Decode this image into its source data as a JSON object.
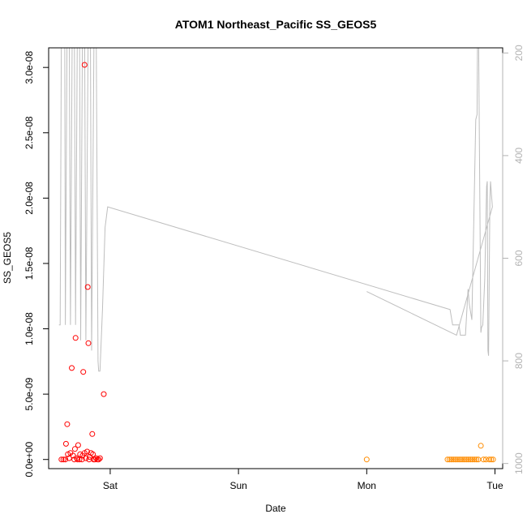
{
  "chart_data": {
    "type": "scatter",
    "title": "ATOM1 Northeast_Pacific SS_GEOS5",
    "xlabel": "Date",
    "ylabel": "SS_GEOS5",
    "x_ticks": [
      {
        "value": 0.0,
        "label": "Sat"
      },
      {
        "value": 1.0,
        "label": "Sun"
      },
      {
        "value": 2.0,
        "label": "Mon"
      },
      {
        "value": 3.0,
        "label": "Tue"
      }
    ],
    "xlim": [
      -0.48,
      3.06
    ],
    "y_ticks": [
      {
        "value": 0.0,
        "label": "0.0e+00"
      },
      {
        "value": 5e-09,
        "label": "5.0e-09"
      },
      {
        "value": 1e-08,
        "label": "1.0e-08"
      },
      {
        "value": 1.5e-08,
        "label": "1.5e-08"
      },
      {
        "value": 2e-08,
        "label": "2.0e-08"
      },
      {
        "value": 2.5e-08,
        "label": "2.5e-08"
      },
      {
        "value": 3e-08,
        "label": "3.0e-08"
      }
    ],
    "ylim": [
      -7e-10,
      3.15e-08
    ],
    "y2_ticks": [
      {
        "value": 200,
        "label": "200"
      },
      {
        "value": 400,
        "label": "400"
      },
      {
        "value": 600,
        "label": "600"
      },
      {
        "value": 800,
        "label": "800"
      },
      {
        "value": 1000,
        "label": "1000"
      }
    ],
    "y2lim": [
      1010,
      190
    ],
    "y2_reversed": true,
    "colors": {
      "series1": "#ff0000",
      "series2": "#ff8c00",
      "line": "#bebebe",
      "right_axis": "#b3b3b3"
    },
    "series": [
      {
        "color": "#ff0000",
        "marker": "open-circle",
        "points": [
          [
            -0.38,
            0.0
          ],
          [
            -0.365,
            0.0
          ],
          [
            -0.35,
            0.0
          ],
          [
            -0.345,
            1.2e-09
          ],
          [
            -0.335,
            2.7e-09
          ],
          [
            -0.33,
            4e-10
          ],
          [
            -0.32,
            1e-10
          ],
          [
            -0.31,
            5e-10
          ],
          [
            -0.3,
            7e-09
          ],
          [
            -0.29,
            3e-10
          ],
          [
            -0.28,
            0.0
          ],
          [
            -0.275,
            8e-10
          ],
          [
            -0.27,
            9.3e-09
          ],
          [
            -0.26,
            1e-10
          ],
          [
            -0.255,
            0.0
          ],
          [
            -0.25,
            1.1e-09
          ],
          [
            -0.24,
            0.0
          ],
          [
            -0.2,
            3.02e-08
          ],
          [
            -0.235,
            4e-10
          ],
          [
            -0.22,
            0.0
          ],
          [
            -0.215,
            3e-10
          ],
          [
            -0.21,
            6.7e-09
          ],
          [
            -0.2,
            5e-10
          ],
          [
            -0.19,
            1e-10
          ],
          [
            -0.18,
            6e-10
          ],
          [
            -0.175,
            1.32e-08
          ],
          [
            -0.17,
            8.9e-09
          ],
          [
            -0.165,
            0.0
          ],
          [
            -0.16,
            2e-10
          ],
          [
            -0.15,
            5e-10
          ],
          [
            -0.14,
            1.95e-09
          ],
          [
            -0.135,
            4e-10
          ],
          [
            -0.13,
            0.0
          ],
          [
            -0.12,
            0.0
          ],
          [
            -0.11,
            1e-10
          ],
          [
            -0.1,
            0.0
          ],
          [
            -0.09,
            0.0
          ],
          [
            -0.08,
            1e-10
          ],
          [
            -0.05,
            5e-09
          ]
        ]
      },
      {
        "color": "#ff8c00",
        "marker": "open-circle",
        "points": [
          [
            2.0,
            0.0
          ],
          [
            2.63,
            0.0
          ],
          [
            2.645,
            0.0
          ],
          [
            2.66,
            0.0
          ],
          [
            2.675,
            0.0
          ],
          [
            2.69,
            0.0
          ],
          [
            2.705,
            0.0
          ],
          [
            2.72,
            0.0
          ],
          [
            2.735,
            0.0
          ],
          [
            2.75,
            0.0
          ],
          [
            2.765,
            0.0
          ],
          [
            2.78,
            0.0
          ],
          [
            2.795,
            0.0
          ],
          [
            2.81,
            0.0
          ],
          [
            2.825,
            0.0
          ],
          [
            2.84,
            0.0
          ],
          [
            2.855,
            0.0
          ],
          [
            2.87,
            0.0
          ],
          [
            2.89,
            1.05e-09
          ],
          [
            2.91,
            0.0
          ],
          [
            2.93,
            0.0
          ],
          [
            2.955,
            0.0
          ],
          [
            2.97,
            0.0
          ],
          [
            2.985,
            0.0
          ]
        ]
      }
    ],
    "pressure_line": {
      "color": "#bebebe",
      "points": [
        [
          -0.4,
          730
        ],
        [
          -0.39,
          730
        ],
        [
          -0.38,
          120
        ],
        [
          -0.37,
          100
        ],
        [
          -0.355,
          120
        ],
        [
          -0.35,
          730
        ],
        [
          -0.335,
          110
        ],
        [
          -0.32,
          110
        ],
        [
          -0.31,
          730
        ],
        [
          -0.295,
          100
        ],
        [
          -0.28,
          110
        ],
        [
          -0.27,
          730
        ],
        [
          -0.255,
          100
        ],
        [
          -0.24,
          110
        ],
        [
          -0.23,
          760
        ],
        [
          -0.215,
          100
        ],
        [
          -0.2,
          120
        ],
        [
          -0.19,
          760
        ],
        [
          -0.17,
          110
        ],
        [
          -0.155,
          120
        ],
        [
          -0.145,
          780
        ],
        [
          -0.125,
          110
        ],
        [
          -0.11,
          110
        ],
        [
          -0.095,
          800
        ],
        [
          -0.09,
          820
        ],
        [
          -0.08,
          820
        ],
        [
          -0.06,
          700
        ],
        [
          -0.04,
          540
        ],
        [
          -0.02,
          500
        ],
        [
          2.65,
          700
        ],
        [
          2.67,
          730
        ],
        [
          2.72,
          730
        ],
        [
          2.73,
          750
        ],
        [
          2.74,
          750
        ],
        [
          2.77,
          750
        ],
        [
          2.79,
          660
        ],
        [
          2.8,
          690
        ],
        [
          2.82,
          720
        ],
        [
          2.85,
          330
        ],
        [
          2.86,
          320
        ],
        [
          2.865,
          120
        ],
        [
          2.87,
          90
        ],
        [
          2.89,
          745
        ],
        [
          2.895,
          735
        ],
        [
          2.905,
          730
        ],
        [
          2.92,
          640
        ],
        [
          2.935,
          460
        ],
        [
          2.94,
          450
        ],
        [
          2.945,
          780
        ],
        [
          2.95,
          790
        ],
        [
          2.96,
          490
        ],
        [
          2.965,
          450
        ],
        [
          2.98,
          500
        ],
        [
          2.7,
          750
        ],
        [
          2.0,
          665
        ]
      ]
    }
  }
}
